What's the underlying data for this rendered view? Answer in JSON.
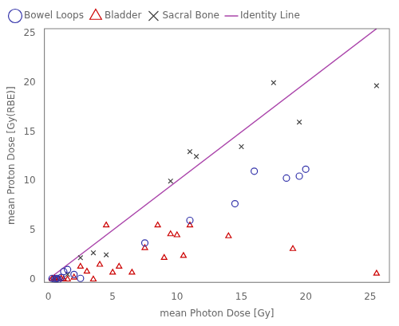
{
  "chart_data": {
    "type": "scatter",
    "xlabel": "mean Photon Dose [Gy]",
    "ylabel": "mean Proton Dose [Gy(RBE)]",
    "series": [
      {
        "name": "Bowel Loops",
        "color": "#3333aa",
        "marker": "circle",
        "x": [
          0.3,
          0.5,
          0.6,
          0.7,
          0.8,
          1.0,
          1.2,
          1.5,
          2.0,
          2.5,
          7.5,
          11.0,
          14.5,
          16.0,
          18.5,
          19.5,
          20.0
        ],
        "values": [
          0.1,
          0.0,
          0.05,
          0.1,
          0.0,
          0.2,
          0.8,
          1.0,
          0.5,
          0.1,
          3.7,
          6.0,
          7.7,
          11.0,
          10.3,
          10.5,
          11.2
        ]
      },
      {
        "name": "Bladder",
        "color": "#cc0000",
        "marker": "triangle",
        "x": [
          0.3,
          0.5,
          0.8,
          1.0,
          1.2,
          1.5,
          2.0,
          2.5,
          3.0,
          3.5,
          4.0,
          4.5,
          5.0,
          5.5,
          6.5,
          7.5,
          8.5,
          9.0,
          9.5,
          10.0,
          10.5,
          11.0,
          14.0,
          19.0,
          25.5
        ],
        "values": [
          0.05,
          0.1,
          0.05,
          0.1,
          0.0,
          0.0,
          0.2,
          1.3,
          0.8,
          0.0,
          1.5,
          5.5,
          0.7,
          1.3,
          0.7,
          3.2,
          5.5,
          2.2,
          4.6,
          4.5,
          2.4,
          5.5,
          4.4,
          3.1,
          0.6
        ]
      },
      {
        "name": "Sacral Bone",
        "color": "#444444",
        "marker": "x",
        "x": [
          0.5,
          1.5,
          2.5,
          3.5,
          4.5,
          9.5,
          11.0,
          11.5,
          15.0,
          17.5,
          19.5,
          25.5
        ],
        "values": [
          0.1,
          0.5,
          2.2,
          2.7,
          2.5,
          10.0,
          13.0,
          12.5,
          13.5,
          20.0,
          16.0,
          19.7
        ]
      },
      {
        "name": "Identity Line",
        "color": "#aa44aa",
        "type": "line",
        "line_style": "solid",
        "x": [
          0,
          25.5
        ],
        "values": [
          0,
          25.5
        ]
      }
    ],
    "xlim": [
      -0.3,
      26.5
    ],
    "ylim": [
      -0.3,
      25.5
    ],
    "xticks": [
      0,
      5,
      10,
      15,
      20,
      25
    ],
    "yticks": [
      0,
      5,
      10,
      15,
      20,
      25
    ],
    "grid": false,
    "legend": "upper left"
  }
}
